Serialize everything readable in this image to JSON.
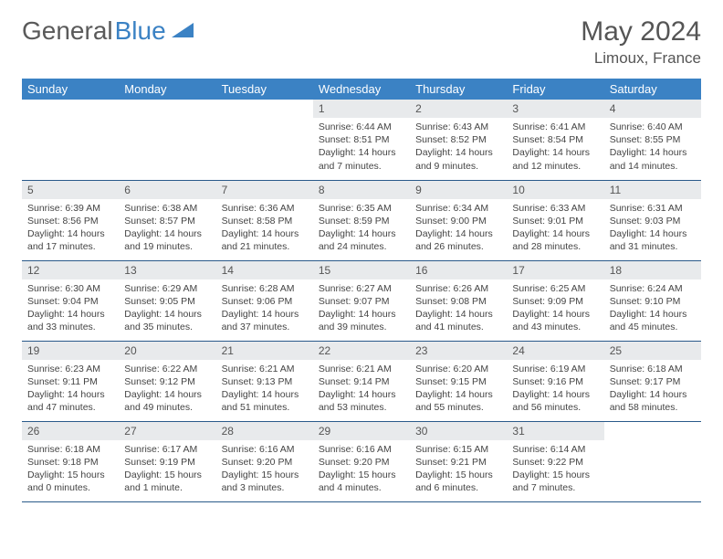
{
  "logo": {
    "text1": "General",
    "text2": "Blue"
  },
  "title": "May 2024",
  "location": "Limoux, France",
  "colors": {
    "header_bg": "#3b82c4",
    "header_text": "#ffffff",
    "daynum_bg": "#e8eaec",
    "border": "#2a5a8a",
    "text": "#444444"
  },
  "weekdays": [
    "Sunday",
    "Monday",
    "Tuesday",
    "Wednesday",
    "Thursday",
    "Friday",
    "Saturday"
  ],
  "weeks": [
    [
      null,
      null,
      null,
      {
        "n": "1",
        "sr": "Sunrise: 6:44 AM",
        "ss": "Sunset: 8:51 PM",
        "dl": "Daylight: 14 hours and 7 minutes."
      },
      {
        "n": "2",
        "sr": "Sunrise: 6:43 AM",
        "ss": "Sunset: 8:52 PM",
        "dl": "Daylight: 14 hours and 9 minutes."
      },
      {
        "n": "3",
        "sr": "Sunrise: 6:41 AM",
        "ss": "Sunset: 8:54 PM",
        "dl": "Daylight: 14 hours and 12 minutes."
      },
      {
        "n": "4",
        "sr": "Sunrise: 6:40 AM",
        "ss": "Sunset: 8:55 PM",
        "dl": "Daylight: 14 hours and 14 minutes."
      }
    ],
    [
      {
        "n": "5",
        "sr": "Sunrise: 6:39 AM",
        "ss": "Sunset: 8:56 PM",
        "dl": "Daylight: 14 hours and 17 minutes."
      },
      {
        "n": "6",
        "sr": "Sunrise: 6:38 AM",
        "ss": "Sunset: 8:57 PM",
        "dl": "Daylight: 14 hours and 19 minutes."
      },
      {
        "n": "7",
        "sr": "Sunrise: 6:36 AM",
        "ss": "Sunset: 8:58 PM",
        "dl": "Daylight: 14 hours and 21 minutes."
      },
      {
        "n": "8",
        "sr": "Sunrise: 6:35 AM",
        "ss": "Sunset: 8:59 PM",
        "dl": "Daylight: 14 hours and 24 minutes."
      },
      {
        "n": "9",
        "sr": "Sunrise: 6:34 AM",
        "ss": "Sunset: 9:00 PM",
        "dl": "Daylight: 14 hours and 26 minutes."
      },
      {
        "n": "10",
        "sr": "Sunrise: 6:33 AM",
        "ss": "Sunset: 9:01 PM",
        "dl": "Daylight: 14 hours and 28 minutes."
      },
      {
        "n": "11",
        "sr": "Sunrise: 6:31 AM",
        "ss": "Sunset: 9:03 PM",
        "dl": "Daylight: 14 hours and 31 minutes."
      }
    ],
    [
      {
        "n": "12",
        "sr": "Sunrise: 6:30 AM",
        "ss": "Sunset: 9:04 PM",
        "dl": "Daylight: 14 hours and 33 minutes."
      },
      {
        "n": "13",
        "sr": "Sunrise: 6:29 AM",
        "ss": "Sunset: 9:05 PM",
        "dl": "Daylight: 14 hours and 35 minutes."
      },
      {
        "n": "14",
        "sr": "Sunrise: 6:28 AM",
        "ss": "Sunset: 9:06 PM",
        "dl": "Daylight: 14 hours and 37 minutes."
      },
      {
        "n": "15",
        "sr": "Sunrise: 6:27 AM",
        "ss": "Sunset: 9:07 PM",
        "dl": "Daylight: 14 hours and 39 minutes."
      },
      {
        "n": "16",
        "sr": "Sunrise: 6:26 AM",
        "ss": "Sunset: 9:08 PM",
        "dl": "Daylight: 14 hours and 41 minutes."
      },
      {
        "n": "17",
        "sr": "Sunrise: 6:25 AM",
        "ss": "Sunset: 9:09 PM",
        "dl": "Daylight: 14 hours and 43 minutes."
      },
      {
        "n": "18",
        "sr": "Sunrise: 6:24 AM",
        "ss": "Sunset: 9:10 PM",
        "dl": "Daylight: 14 hours and 45 minutes."
      }
    ],
    [
      {
        "n": "19",
        "sr": "Sunrise: 6:23 AM",
        "ss": "Sunset: 9:11 PM",
        "dl": "Daylight: 14 hours and 47 minutes."
      },
      {
        "n": "20",
        "sr": "Sunrise: 6:22 AM",
        "ss": "Sunset: 9:12 PM",
        "dl": "Daylight: 14 hours and 49 minutes."
      },
      {
        "n": "21",
        "sr": "Sunrise: 6:21 AM",
        "ss": "Sunset: 9:13 PM",
        "dl": "Daylight: 14 hours and 51 minutes."
      },
      {
        "n": "22",
        "sr": "Sunrise: 6:21 AM",
        "ss": "Sunset: 9:14 PM",
        "dl": "Daylight: 14 hours and 53 minutes."
      },
      {
        "n": "23",
        "sr": "Sunrise: 6:20 AM",
        "ss": "Sunset: 9:15 PM",
        "dl": "Daylight: 14 hours and 55 minutes."
      },
      {
        "n": "24",
        "sr": "Sunrise: 6:19 AM",
        "ss": "Sunset: 9:16 PM",
        "dl": "Daylight: 14 hours and 56 minutes."
      },
      {
        "n": "25",
        "sr": "Sunrise: 6:18 AM",
        "ss": "Sunset: 9:17 PM",
        "dl": "Daylight: 14 hours and 58 minutes."
      }
    ],
    [
      {
        "n": "26",
        "sr": "Sunrise: 6:18 AM",
        "ss": "Sunset: 9:18 PM",
        "dl": "Daylight: 15 hours and 0 minutes."
      },
      {
        "n": "27",
        "sr": "Sunrise: 6:17 AM",
        "ss": "Sunset: 9:19 PM",
        "dl": "Daylight: 15 hours and 1 minute."
      },
      {
        "n": "28",
        "sr": "Sunrise: 6:16 AM",
        "ss": "Sunset: 9:20 PM",
        "dl": "Daylight: 15 hours and 3 minutes."
      },
      {
        "n": "29",
        "sr": "Sunrise: 6:16 AM",
        "ss": "Sunset: 9:20 PM",
        "dl": "Daylight: 15 hours and 4 minutes."
      },
      {
        "n": "30",
        "sr": "Sunrise: 6:15 AM",
        "ss": "Sunset: 9:21 PM",
        "dl": "Daylight: 15 hours and 6 minutes."
      },
      {
        "n": "31",
        "sr": "Sunrise: 6:14 AM",
        "ss": "Sunset: 9:22 PM",
        "dl": "Daylight: 15 hours and 7 minutes."
      },
      null
    ]
  ]
}
